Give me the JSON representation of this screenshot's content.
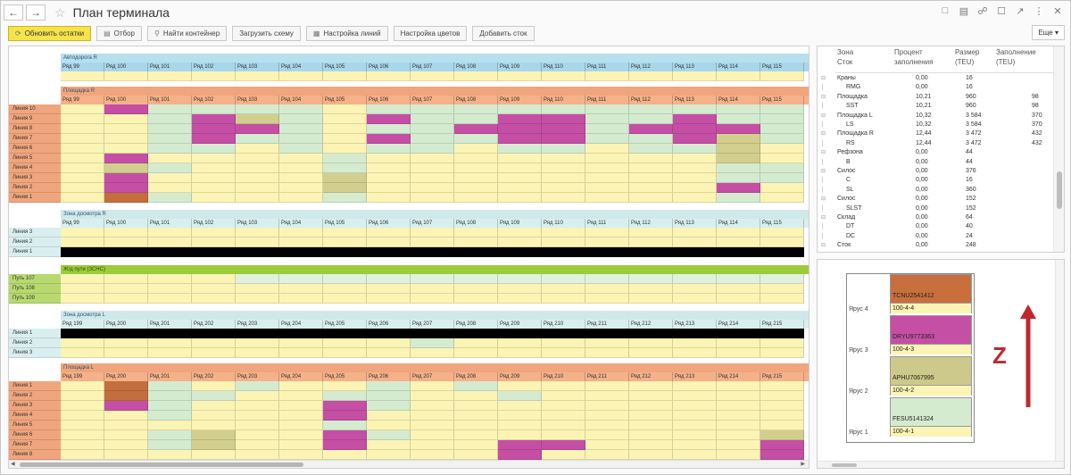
{
  "window": {
    "title": "План терминала",
    "back_icon": "back-arrow-icon",
    "forward_icon": "forward-arrow-icon"
  },
  "toolbar": {
    "refresh_label": "Обновить остатки",
    "filter_label": "Отбор",
    "find_label": "Найти контейнер",
    "load_scheme_label": "Загрузить схему",
    "lines_settings_label": "Настройка линий",
    "colors_settings_label": "Настройка цветов",
    "add_stock_label": "Добавить сток",
    "more_label": "Еще"
  },
  "zones": {
    "autoroad": {
      "name": "Автодорога R",
      "rows": [
        "Ряд 99",
        "Ряд 100",
        "Ряд 101",
        "Ряд 102",
        "Ряд 103",
        "Ряд 104",
        "Ряд 105",
        "Ряд 106",
        "Ряд 107",
        "Ряд 108",
        "Ряд 109",
        "Ряд 110",
        "Ряд 111",
        "Ряд 112",
        "Ряд 113",
        "Ряд 114",
        "Ряд 115"
      ]
    },
    "area_r": {
      "name": "Площадка R",
      "rows": [
        "Ряд 99",
        "Ряд 100",
        "Ряд 101",
        "Ряд 102",
        "Ряд 103",
        "Ряд 104",
        "Ряд 105",
        "Ряд 106",
        "Ряд 107",
        "Ряд 108",
        "Ряд 109",
        "Ряд 110",
        "Ряд 111",
        "Ряд 112",
        "Ряд 113",
        "Ряд 114",
        "Ряд 115"
      ],
      "lines": [
        "Линия 10",
        "Линия 9",
        "Линия 8",
        "Линия 7",
        "Линия 6",
        "Линия 5",
        "Линия 4",
        "Линия 3",
        "Линия 2",
        "Линия 1"
      ]
    },
    "inspect_r": {
      "name": "Зона досмотра R",
      "rows": [
        "Ряд 99",
        "Ряд 100",
        "Ряд 101",
        "Ряд 102",
        "Ряд 103",
        "Ряд 104",
        "Ряд 105",
        "Ряд 106",
        "Ряд 107",
        "Ряд 108",
        "Ряд 109",
        "Ряд 110",
        "Ряд 111",
        "Ряд 112",
        "Ряд 113",
        "Ряд 114",
        "Ряд 115"
      ],
      "lines": [
        "Линия 3",
        "Линия 2",
        "Линия 1"
      ]
    },
    "rail": {
      "name": "Ж/д пути (ЗСНС)",
      "lines": [
        "Путь 107",
        "Путь 108",
        "Путь 109"
      ]
    },
    "inspect_l": {
      "name": "Зона досмотра L",
      "rows": [
        "Ряд 199",
        "Ряд 200",
        "Ряд 201",
        "Ряд 202",
        "Ряд 203",
        "Ряд 204",
        "Ряд 205",
        "Ряд 206",
        "Ряд 207",
        "Ряд 208",
        "Ряд 209",
        "Ряд 210",
        "Ряд 211",
        "Ряд 212",
        "Ряд 213",
        "Ряд 214",
        "Ряд 215"
      ],
      "lines": [
        "Линия 1",
        "Линия 2",
        "Линия 3"
      ]
    },
    "area_l": {
      "name": "Площадка L",
      "rows": [
        "Ряд 199",
        "Ряд 200",
        "Ряд 201",
        "Ряд 202",
        "Ряд 203",
        "Ряд 204",
        "Ряд 205",
        "Ряд 206",
        "Ряд 207",
        "Ряд 208",
        "Ряд 209",
        "Ряд 210",
        "Ряд 211",
        "Ряд 212",
        "Ряд 213",
        "Ряд 214",
        "Ряд 215"
      ],
      "lines": [
        "Линия 1",
        "Линия 2",
        "Линия 3",
        "Линия 4",
        "Линия 5",
        "Линия 6",
        "Линия 7",
        "Линия 8"
      ]
    }
  },
  "stock_table": {
    "headers": {
      "zone": "Зона",
      "stock": "Сток",
      "percent": "Процент заполнения",
      "size": "Размер (TEU)",
      "fill": "Заполнение (TEU)"
    },
    "rows": [
      {
        "name": "Краны",
        "level": 0,
        "pct": "0,00",
        "size": "16",
        "fill": ""
      },
      {
        "name": "RMG",
        "level": 1,
        "pct": "0,00",
        "size": "16",
        "fill": ""
      },
      {
        "name": "Площадка",
        "level": 0,
        "pct": "10,21",
        "size": "960",
        "fill": "98"
      },
      {
        "name": "SST",
        "level": 1,
        "pct": "10,21",
        "size": "960",
        "fill": "98"
      },
      {
        "name": "Площадка L",
        "level": 0,
        "pct": "10,32",
        "size": "3 584",
        "fill": "370"
      },
      {
        "name": "LS",
        "level": 1,
        "pct": "10,32",
        "size": "3 584",
        "fill": "370"
      },
      {
        "name": "Площадка R",
        "level": 0,
        "pct": "12,44",
        "size": "3 472",
        "fill": "432"
      },
      {
        "name": "RS",
        "level": 1,
        "pct": "12,44",
        "size": "3 472",
        "fill": "432"
      },
      {
        "name": "Рефзона",
        "level": 0,
        "pct": "0,00",
        "size": "44",
        "fill": ""
      },
      {
        "name": "B",
        "level": 1,
        "pct": "0,00",
        "size": "44",
        "fill": ""
      },
      {
        "name": "Силос",
        "level": 0,
        "pct": "0,00",
        "size": "376",
        "fill": ""
      },
      {
        "name": "C",
        "level": 1,
        "pct": "0,00",
        "size": "16",
        "fill": ""
      },
      {
        "name": "SL",
        "level": 1,
        "pct": "0,00",
        "size": "360",
        "fill": ""
      },
      {
        "name": "Силос",
        "level": 0,
        "pct": "0,00",
        "size": "152",
        "fill": ""
      },
      {
        "name": "SLST",
        "level": 1,
        "pct": "0,00",
        "size": "152",
        "fill": ""
      },
      {
        "name": "Склад",
        "level": 0,
        "pct": "0,00",
        "size": "64",
        "fill": ""
      },
      {
        "name": "DT",
        "level": 1,
        "pct": "0,00",
        "size": "40",
        "fill": ""
      },
      {
        "name": "DC",
        "level": 1,
        "pct": "0,00",
        "size": "24",
        "fill": ""
      },
      {
        "name": "Сток",
        "level": 0,
        "pct": "0,00",
        "size": "248",
        "fill": ""
      }
    ]
  },
  "stack": {
    "axis_label": "Z",
    "axis_color": "#c1272d",
    "tiers": [
      {
        "label": "Ярус 4",
        "container": "TCNU2541412",
        "position": "100-4-4",
        "color": "#c96e3d"
      },
      {
        "label": "Ярус 3",
        "container": "DRYU9773363",
        "position": "100-4-3",
        "color": "#c54fa5"
      },
      {
        "label": "Ярус 2",
        "container": "APHU7067995",
        "position": "100-4-2",
        "color": "#cdc98a"
      },
      {
        "label": "Ярус 1",
        "container": "FESU5141324",
        "position": "100-4-1",
        "color": "#d5ebd0"
      }
    ]
  }
}
